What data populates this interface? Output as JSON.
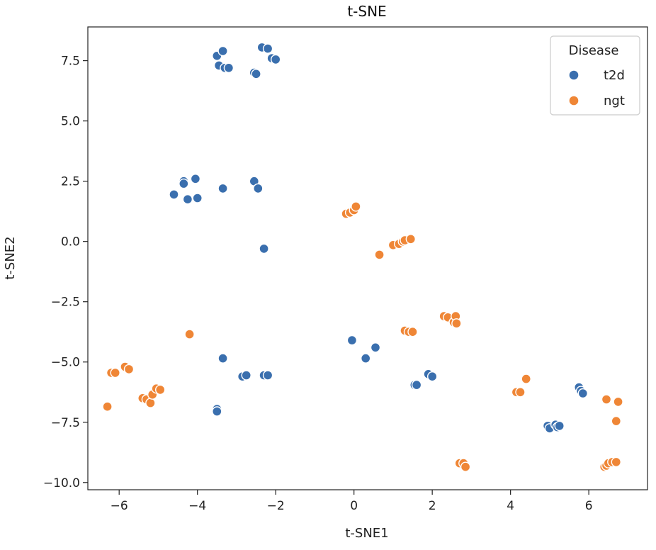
{
  "chart_data": {
    "type": "scatter",
    "title": "t-SNE",
    "xlabel": "t-SNE1",
    "ylabel": "t-SNE2",
    "xlim": [
      -6.8,
      7.5
    ],
    "ylim": [
      -10.3,
      8.9
    ],
    "xticks": [
      -6,
      -4,
      -2,
      0,
      2,
      4,
      6
    ],
    "xtick_labels": [
      "−6",
      "−4",
      "−2",
      "0",
      "2",
      "4",
      "6"
    ],
    "yticks": [
      -10.0,
      -7.5,
      -5.0,
      -2.5,
      0.0,
      2.5,
      5.0,
      7.5
    ],
    "ytick_labels": [
      "−10.0",
      "−7.5",
      "−5.0",
      "−2.5",
      "0.0",
      "2.5",
      "5.0",
      "7.5"
    ],
    "grid": false,
    "legend": {
      "title": "Disease",
      "placement": "top-right"
    },
    "series": [
      {
        "name": "t2d",
        "color": "#3a6fae",
        "points": [
          [
            -3.5,
            7.7
          ],
          [
            -3.35,
            7.9
          ],
          [
            -3.45,
            7.3
          ],
          [
            -3.3,
            7.2
          ],
          [
            -3.2,
            7.2
          ],
          [
            -2.35,
            8.05
          ],
          [
            -2.2,
            8.0
          ],
          [
            -2.1,
            7.6
          ],
          [
            -2.0,
            7.55
          ],
          [
            -2.55,
            7.0
          ],
          [
            -2.5,
            6.95
          ],
          [
            -4.35,
            2.5
          ],
          [
            -4.35,
            2.4
          ],
          [
            -4.05,
            2.6
          ],
          [
            -4.6,
            1.95
          ],
          [
            -4.25,
            1.75
          ],
          [
            -4.0,
            1.8
          ],
          [
            -3.35,
            2.2
          ],
          [
            -2.55,
            2.5
          ],
          [
            -2.45,
            2.2
          ],
          [
            -2.3,
            -0.3
          ],
          [
            -3.35,
            -4.85
          ],
          [
            -2.85,
            -5.6
          ],
          [
            -2.75,
            -5.55
          ],
          [
            -2.3,
            -5.55
          ],
          [
            -2.2,
            -5.55
          ],
          [
            -3.5,
            -6.95
          ],
          [
            -3.5,
            -7.05
          ],
          [
            -0.05,
            -4.1
          ],
          [
            0.3,
            -4.85
          ],
          [
            0.55,
            -4.4
          ],
          [
            1.55,
            -5.95
          ],
          [
            1.6,
            -5.95
          ],
          [
            1.9,
            -5.5
          ],
          [
            2.0,
            -5.6
          ],
          [
            5.75,
            -6.05
          ],
          [
            5.8,
            -6.2
          ],
          [
            5.85,
            -6.3
          ],
          [
            4.95,
            -7.65
          ],
          [
            5.0,
            -7.75
          ],
          [
            5.15,
            -7.6
          ],
          [
            5.2,
            -7.7
          ],
          [
            5.25,
            -7.65
          ]
        ]
      },
      {
        "name": "ngt",
        "color": "#ef8636",
        "points": [
          [
            -0.2,
            1.15
          ],
          [
            -0.1,
            1.2
          ],
          [
            0.0,
            1.3
          ],
          [
            0.05,
            1.45
          ],
          [
            1.0,
            -0.15
          ],
          [
            1.15,
            -0.1
          ],
          [
            1.25,
            0.0
          ],
          [
            1.3,
            0.05
          ],
          [
            1.45,
            0.1
          ],
          [
            0.65,
            -0.55
          ],
          [
            2.3,
            -3.1
          ],
          [
            2.4,
            -3.15
          ],
          [
            2.55,
            -3.35
          ],
          [
            2.6,
            -3.1
          ],
          [
            2.62,
            -3.4
          ],
          [
            1.3,
            -3.7
          ],
          [
            1.4,
            -3.75
          ],
          [
            1.5,
            -3.75
          ],
          [
            -4.2,
            -3.85
          ],
          [
            -6.2,
            -5.45
          ],
          [
            -6.1,
            -5.45
          ],
          [
            -5.85,
            -5.2
          ],
          [
            -5.75,
            -5.3
          ],
          [
            -5.4,
            -6.5
          ],
          [
            -5.3,
            -6.55
          ],
          [
            -5.2,
            -6.7
          ],
          [
            -5.15,
            -6.35
          ],
          [
            -5.05,
            -6.1
          ],
          [
            -4.95,
            -6.15
          ],
          [
            -6.3,
            -6.85
          ],
          [
            4.15,
            -6.25
          ],
          [
            4.25,
            -6.25
          ],
          [
            4.4,
            -5.7
          ],
          [
            2.7,
            -9.2
          ],
          [
            2.8,
            -9.2
          ],
          [
            2.85,
            -9.35
          ],
          [
            6.45,
            -6.55
          ],
          [
            6.75,
            -6.65
          ],
          [
            6.7,
            -7.45
          ],
          [
            6.4,
            -9.35
          ],
          [
            6.45,
            -9.3
          ],
          [
            6.5,
            -9.2
          ],
          [
            6.6,
            -9.15
          ],
          [
            6.7,
            -9.15
          ]
        ]
      }
    ]
  }
}
